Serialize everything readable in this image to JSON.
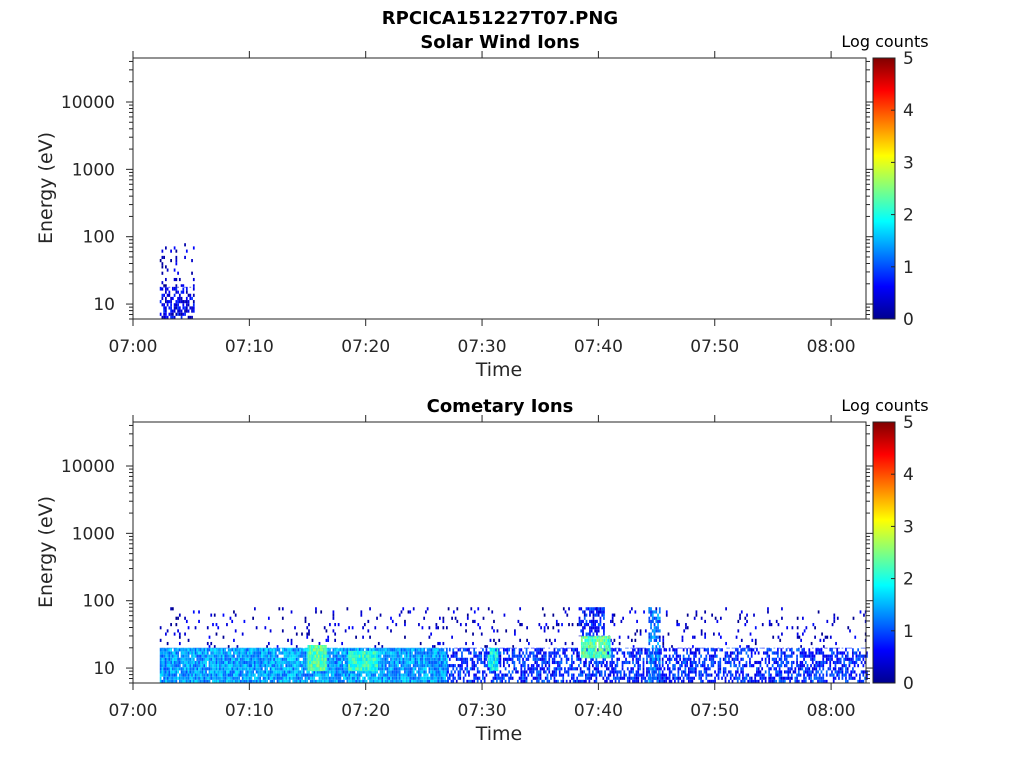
{
  "figure_title": "RPCICA151227T07.PNG",
  "colors": {
    "colormap": [
      "#00008f",
      "#0000ff",
      "#0080ff",
      "#00ffff",
      "#80ff80",
      "#ffff00",
      "#ff8000",
      "#ff0000",
      "#800000"
    ],
    "axis": "#262626"
  },
  "chart_data": [
    {
      "type": "heatmap",
      "title": "Solar Wind Ions",
      "xlabel": "Time",
      "ylabel": "Energy (eV)",
      "x_tick_labels": [
        "07:00",
        "07:10",
        "07:20",
        "07:30",
        "07:40",
        "07:50",
        "08:00"
      ],
      "x_range_minutes": [
        0,
        63
      ],
      "y_scale": "log",
      "y_tick_values": [
        10,
        100,
        1000,
        10000
      ],
      "y_tick_labels": [
        "10",
        "100",
        "1000",
        "10000"
      ],
      "ylim": [
        6,
        45000
      ],
      "colorbar": {
        "label": "Log counts",
        "range": [
          0,
          5
        ],
        "tick_labels": [
          "0",
          "1",
          "2",
          "3",
          "4",
          "5"
        ]
      },
      "regions": [
        {
          "t_start": 2.3,
          "t_end": 5.3,
          "e_min": 6,
          "e_max": 18,
          "log_counts": 0.5,
          "density": 0.6
        },
        {
          "t_start": 2.3,
          "t_end": 5.3,
          "e_min": 18,
          "e_max": 80,
          "log_counts": 0.3,
          "density": 0.12
        }
      ]
    },
    {
      "type": "heatmap",
      "title": "Cometary Ions",
      "xlabel": "Time",
      "ylabel": "Energy (eV)",
      "x_tick_labels": [
        "07:00",
        "07:10",
        "07:20",
        "07:30",
        "07:40",
        "07:50",
        "08:00"
      ],
      "x_range_minutes": [
        0,
        63
      ],
      "y_scale": "log",
      "y_tick_values": [
        10,
        100,
        1000,
        10000
      ],
      "y_tick_labels": [
        "10",
        "100",
        "1000",
        "10000"
      ],
      "ylim": [
        6,
        45000
      ],
      "colorbar": {
        "label": "Log counts",
        "range": [
          0,
          5
        ],
        "tick_labels": [
          "0",
          "1",
          "2",
          "3",
          "4",
          "5"
        ]
      },
      "regions": [
        {
          "t_start": 2.3,
          "t_end": 27,
          "e_min": 6,
          "e_max": 20,
          "log_counts": 1.4,
          "density": 0.95
        },
        {
          "t_start": 27,
          "t_end": 63,
          "e_min": 6,
          "e_max": 20,
          "log_counts": 0.8,
          "density": 0.55
        },
        {
          "t_start": 2.3,
          "t_end": 63,
          "e_min": 20,
          "e_max": 80,
          "log_counts": 0.3,
          "density": 0.07
        },
        {
          "t_start": 15,
          "t_end": 16.5,
          "e_min": 9,
          "e_max": 22,
          "log_counts": 2.3,
          "density": 1.0
        },
        {
          "t_start": 18.5,
          "t_end": 21,
          "e_min": 9,
          "e_max": 18,
          "log_counts": 2.1,
          "density": 1.0
        },
        {
          "t_start": 30.5,
          "t_end": 31.3,
          "e_min": 9,
          "e_max": 20,
          "log_counts": 1.9,
          "density": 0.9
        },
        {
          "t_start": 38.5,
          "t_end": 41,
          "e_min": 14,
          "e_max": 30,
          "log_counts": 2.3,
          "density": 0.95
        },
        {
          "t_start": 38.3,
          "t_end": 40.5,
          "e_min": 30,
          "e_max": 80,
          "log_counts": 0.7,
          "density": 0.6
        },
        {
          "t_start": 44.3,
          "t_end": 45.2,
          "e_min": 6,
          "e_max": 80,
          "log_counts": 1.2,
          "density": 0.6
        }
      ]
    }
  ]
}
